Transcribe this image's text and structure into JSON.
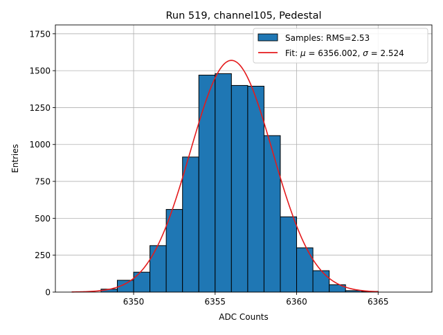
{
  "chart_data": {
    "type": "bar",
    "title": "Run 519, channel105, Pedestal",
    "xlabel": "ADC Counts",
    "ylabel": "Entries",
    "xlim": [
      6345.2,
      6368.3
    ],
    "ylim": [
      0,
      1810
    ],
    "xticks": [
      6350,
      6355,
      6360,
      6365
    ],
    "xtick_labels": [
      "6350",
      "6355",
      "6360",
      "6365"
    ],
    "yticks": [
      0,
      250,
      500,
      750,
      1000,
      1250,
      1500,
      1750
    ],
    "ytick_labels": [
      "0",
      "250",
      "500",
      "750",
      "1000",
      "1250",
      "1500",
      "1750"
    ],
    "grid": true,
    "legend_position": "top-right",
    "histogram": {
      "name": "Samples: RMS=2.53",
      "color": "#1f77b4",
      "bin_edges": [
        6348,
        6349,
        6350,
        6351,
        6352,
        6353,
        6354,
        6355,
        6356,
        6357,
        6358,
        6359,
        6360,
        6361,
        6362,
        6363,
        6364,
        6365
      ],
      "values": [
        20,
        80,
        135,
        315,
        560,
        915,
        1470,
        1480,
        1400,
        1395,
        1060,
        510,
        300,
        145,
        50,
        10,
        5
      ]
    },
    "fit": {
      "name": "Fit: μ = 6356.002, σ = 2.524",
      "name_parts": [
        "Fit: ",
        "μ",
        " = 6356.002, ",
        "σ",
        " = 2.524"
      ],
      "color": "#e41a1c",
      "mu": 6356.002,
      "sigma": 2.524,
      "amplitude": 1570,
      "x_range": [
        6346.2,
        6365
      ]
    }
  }
}
